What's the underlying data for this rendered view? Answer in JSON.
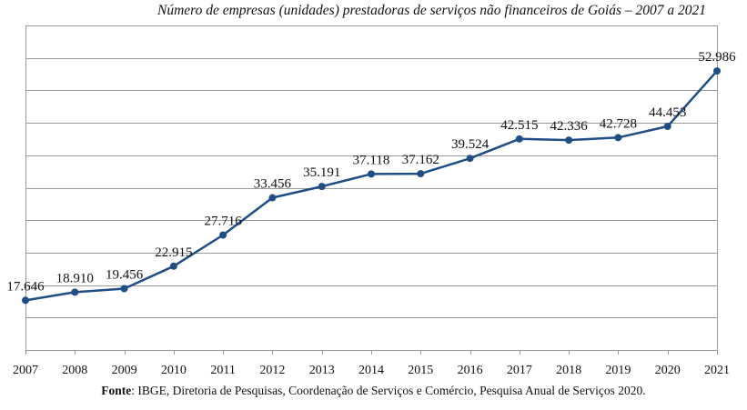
{
  "chart_data": {
    "type": "line",
    "title": "Número de empresas (unidades) prestadoras de serviços não financeiros de Goiás – 2007 a 2021",
    "categories": [
      "2007",
      "2008",
      "2009",
      "2010",
      "2011",
      "2012",
      "2013",
      "2014",
      "2015",
      "2016",
      "2017",
      "2018",
      "2019",
      "2020",
      "2021"
    ],
    "series": [
      {
        "values": [
          17646,
          18910,
          19456,
          22915,
          27716,
          33456,
          35191,
          37118,
          37162,
          39524,
          42515,
          42336,
          42728,
          44453,
          52986
        ],
        "labels": [
          "17.646",
          "18.910",
          "19.456",
          "22.915",
          "27.716",
          "33.456",
          "35.191",
          "37.118",
          "37.162",
          "39.524",
          "42.515",
          "42.336",
          "42.728",
          "44.453",
          "52.986"
        ]
      }
    ],
    "ylim": [
      10000,
      60000
    ],
    "grid": true,
    "line_color": "#1f4e86"
  },
  "footer": {
    "source_label": "Fonte",
    "source_text": ": IBGE, Diretoria de Pesquisas, Coordenação de Serviços e Comércio, Pesquisa Anual de Serviços 2020."
  }
}
